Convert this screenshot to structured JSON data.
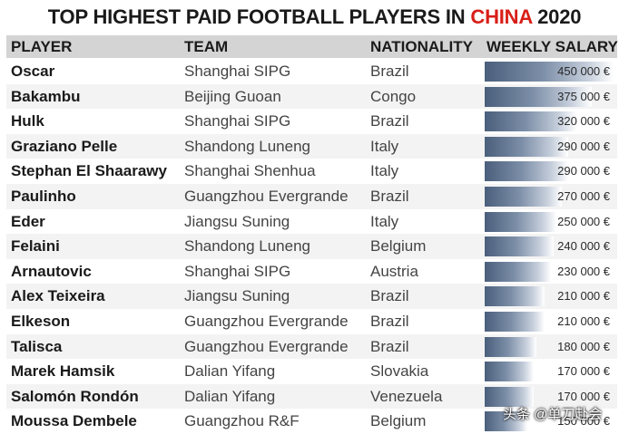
{
  "title": {
    "before": "TOP HIGHEST PAID FOOTBALL PLAYERS IN ",
    "highlight": "CHINA",
    "after": " 2020"
  },
  "colors": {
    "highlight": "#d91e18",
    "header_bg": "#d4d4d4",
    "bar_dark": "#4a5f7c",
    "row_alt": "#f3f3f3"
  },
  "header": {
    "player": "PLAYER",
    "team": "TEAM",
    "nationality": "NATIONALITY",
    "salary": "WEEKLY SALARY"
  },
  "watermark": "头条 @单刀赴会",
  "chart_data": {
    "type": "table",
    "max_value": 450000,
    "rows": [
      {
        "player": "Oscar",
        "team": "Shanghai SIPG",
        "nationality": "Brazil",
        "salary": 450000,
        "salary_label": "450 000 €"
      },
      {
        "player": "Bakambu",
        "team": "Beijing Guoan",
        "nationality": "Congo",
        "salary": 375000,
        "salary_label": "375 000 €"
      },
      {
        "player": "Hulk",
        "team": "Shanghai SIPG",
        "nationality": "Brazil",
        "salary": 320000,
        "salary_label": "320 000 €"
      },
      {
        "player": "Graziano Pelle",
        "team": "Shandong Luneng",
        "nationality": "Italy",
        "salary": 290000,
        "salary_label": "290 000 €"
      },
      {
        "player": "Stephan El Shaarawy",
        "team": "Shanghai Shenhua",
        "nationality": "Italy",
        "salary": 290000,
        "salary_label": "290 000 €"
      },
      {
        "player": "Paulinho",
        "team": "Guangzhou Evergrande",
        "nationality": "Brazil",
        "salary": 270000,
        "salary_label": "270 000 €"
      },
      {
        "player": "Eder",
        "team": "Jiangsu Suning",
        "nationality": "Italy",
        "salary": 250000,
        "salary_label": "250 000 €"
      },
      {
        "player": "Felaini",
        "team": "Shandong Luneng",
        "nationality": "Belgium",
        "salary": 240000,
        "salary_label": "240 000 €"
      },
      {
        "player": "Arnautovic",
        "team": "Shanghai SIPG",
        "nationality": "Austria",
        "salary": 230000,
        "salary_label": "230 000 €"
      },
      {
        "player": "Alex Teixeira",
        "team": "Jiangsu Suning",
        "nationality": "Brazil",
        "salary": 210000,
        "salary_label": "210 000 €"
      },
      {
        "player": "Elkeson",
        "team": "Guangzhou Evergrande",
        "nationality": "Brazil",
        "salary": 210000,
        "salary_label": "210 000 €"
      },
      {
        "player": "Talisca",
        "team": "Guangzhou Evergrande",
        "nationality": "Brazil",
        "salary": 180000,
        "salary_label": "180 000 €"
      },
      {
        "player": "Marek Hamsik",
        "team": "Dalian Yifang",
        "nationality": "Slovakia",
        "salary": 170000,
        "salary_label": "170 000 €"
      },
      {
        "player": "Salomón Rondón",
        "team": "Dalian Yifang",
        "nationality": "Venezuela",
        "salary": 170000,
        "salary_label": "170 000 €"
      },
      {
        "player": "Moussa Dembele",
        "team": "Guangzhou R&F",
        "nationality": "Belgium",
        "salary": 150000,
        "salary_label": "150 000 €"
      }
    ]
  }
}
